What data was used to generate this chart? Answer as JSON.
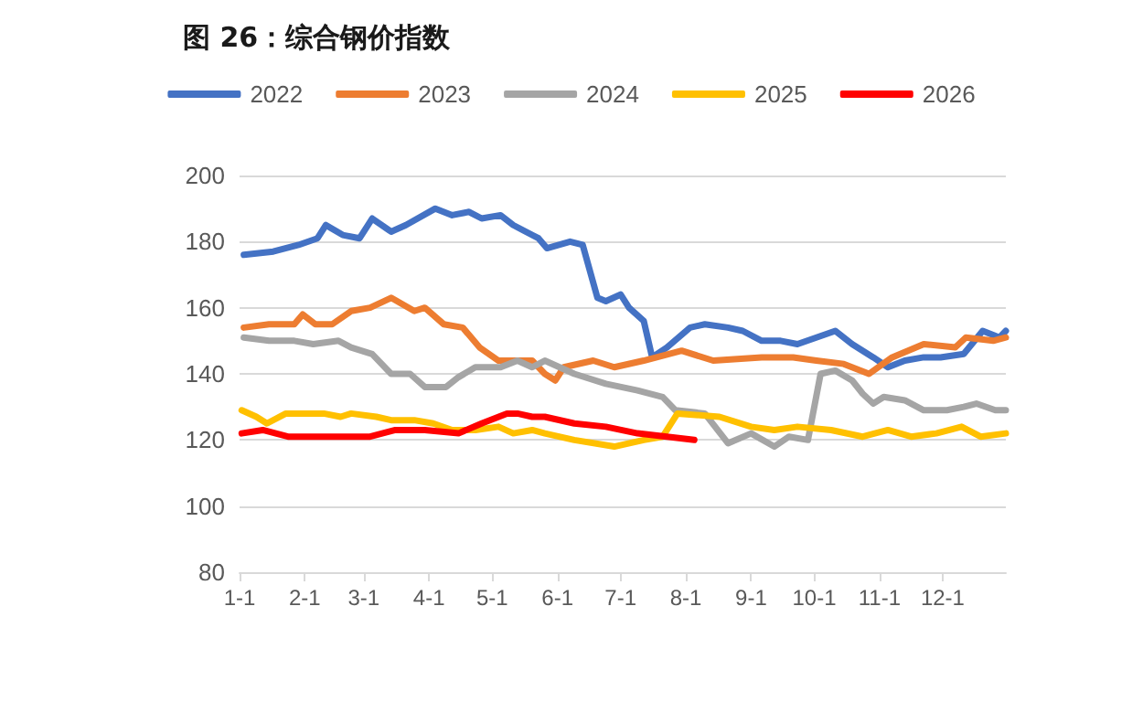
{
  "chart_data": {
    "type": "line",
    "title": "图 26：综合钢价指数",
    "xlim": [
      "--01-01",
      "--12-31"
    ],
    "xticks": [
      {
        "value": "--01-01",
        "label": "1-1"
      },
      {
        "value": "--02-01",
        "label": "2-1"
      },
      {
        "value": "--03-01",
        "label": "3-1"
      },
      {
        "value": "--04-01",
        "label": "4-1"
      },
      {
        "value": "--05-01",
        "label": "5-1"
      },
      {
        "value": "--06-01",
        "label": "6-1"
      },
      {
        "value": "--07-01",
        "label": "7-1"
      },
      {
        "value": "--08-01",
        "label": "8-1"
      },
      {
        "value": "--09-01",
        "label": "9-1"
      },
      {
        "value": "--10-01",
        "label": "10-1"
      },
      {
        "value": "--11-01",
        "label": "11-1"
      },
      {
        "value": "--12-01",
        "label": "12-1"
      }
    ],
    "ylim": [
      80,
      200
    ],
    "yticks": [
      80,
      100,
      120,
      140,
      160,
      180,
      200
    ],
    "grid": "y",
    "legend": "top",
    "marker": "none",
    "line_style": "solid",
    "series": [
      {
        "name": "2022",
        "color": "#4472c4",
        "x": [
          "--01-03",
          "--01-17",
          "--01-29",
          "--02-07",
          "--02-11",
          "--02-19",
          "--02-27",
          "--03-05",
          "--03-14",
          "--03-21",
          "--04-04",
          "--04-12",
          "--04-20",
          "--04-26",
          "--05-05",
          "--05-11",
          "--05-23",
          "--05-27",
          "--06-07",
          "--06-13",
          "--06-20",
          "--06-24",
          "--07-01",
          "--07-05",
          "--07-12",
          "--07-16",
          "--07-23",
          "--08-03",
          "--08-10",
          "--08-21",
          "--08-28",
          "--09-06",
          "--09-15",
          "--09-23",
          "--10-02",
          "--10-11",
          "--10-19",
          "--10-29",
          "--11-05",
          "--11-13",
          "--11-22",
          "--11-30",
          "--12-11",
          "--12-20",
          "--12-28",
          "--12-31"
        ],
        "values": [
          176,
          177,
          179,
          181,
          185,
          182,
          181,
          187,
          183,
          185,
          190,
          188,
          189,
          187,
          188,
          185,
          181,
          178,
          180,
          179,
          163,
          162,
          164,
          160,
          156,
          145,
          148,
          154,
          155,
          154,
          153,
          150,
          150,
          149,
          151,
          153,
          149,
          145,
          142,
          144,
          145,
          145,
          146,
          153,
          151,
          153
        ]
      },
      {
        "name": "2023",
        "color": "#ed7d31",
        "x": [
          "--01-03",
          "--01-15",
          "--01-27",
          "--01-31",
          "--02-06",
          "--02-14",
          "--02-23",
          "--03-04",
          "--03-14",
          "--03-25",
          "--03-30",
          "--04-08",
          "--04-17",
          "--04-25",
          "--05-04",
          "--05-11",
          "--05-20",
          "--05-26",
          "--05-31",
          "--06-04",
          "--06-18",
          "--06-28",
          "--07-12",
          "--07-30",
          "--08-14",
          "--09-06",
          "--09-21",
          "--10-02",
          "--10-15",
          "--10-27",
          "--11-07",
          "--11-22",
          "--12-07",
          "--12-12",
          "--12-25",
          "--12-31"
        ],
        "values": [
          154,
          155,
          155,
          158,
          155,
          155,
          159,
          160,
          163,
          159,
          160,
          155,
          154,
          148,
          144,
          144,
          144,
          140,
          138,
          142,
          144,
          142,
          144,
          147,
          144,
          145,
          145,
          144,
          143,
          140,
          145,
          149,
          148,
          151,
          150,
          151
        ]
      },
      {
        "name": "2024",
        "color": "#a5a5a5",
        "x": [
          "--01-03",
          "--01-15",
          "--01-27",
          "--02-05",
          "--02-17",
          "--02-23",
          "--03-05",
          "--03-14",
          "--03-23",
          "--03-30",
          "--04-09",
          "--04-15",
          "--04-23",
          "--05-05",
          "--05-13",
          "--05-20",
          "--05-26",
          "--06-09",
          "--06-24",
          "--07-09",
          "--07-21",
          "--07-27",
          "--08-10",
          "--08-21",
          "--09-01",
          "--09-12",
          "--09-19",
          "--09-28",
          "--10-04",
          "--10-11",
          "--10-19",
          "--10-24",
          "--10-29",
          "--11-03",
          "--11-13",
          "--11-22",
          "--12-03",
          "--12-11",
          "--12-17",
          "--12-26",
          "--12-31"
        ],
        "values": [
          151,
          150,
          150,
          149,
          150,
          148,
          146,
          140,
          140,
          136,
          136,
          139,
          142,
          142,
          144,
          142,
          144,
          140,
          137,
          135,
          133,
          129,
          128,
          119,
          122,
          118,
          121,
          120,
          140,
          141,
          138,
          134,
          131,
          133,
          132,
          129,
          129,
          130,
          131,
          129,
          129
        ]
      },
      {
        "name": "2025",
        "color": "#ffc000",
        "x": [
          "--01-02",
          "--01-09",
          "--01-14",
          "--01-23",
          "--02-10",
          "--02-18",
          "--02-23",
          "--03-07",
          "--03-14",
          "--03-25",
          "--04-03",
          "--04-12",
          "--04-23",
          "--05-04",
          "--05-11",
          "--05-20",
          "--05-26",
          "--06-09",
          "--06-28",
          "--07-12",
          "--07-21",
          "--07-28",
          "--08-17",
          "--09-01",
          "--09-12",
          "--09-23",
          "--10-09",
          "--10-24",
          "--11-05",
          "--11-16",
          "--11-28",
          "--12-10",
          "--12-19",
          "--12-31"
        ],
        "values": [
          129,
          127,
          125,
          128,
          128,
          127,
          128,
          127,
          126,
          126,
          125,
          123,
          123,
          124,
          122,
          123,
          122,
          120,
          118,
          120,
          121,
          128,
          127,
          124,
          123,
          124,
          123,
          121,
          123,
          121,
          122,
          124,
          121,
          122
        ]
      },
      {
        "name": "2026",
        "color": "#ff0000",
        "x": [
          "--01-02",
          "--01-12",
          "--01-24",
          "--02-10",
          "--03-04",
          "--03-16",
          "--03-30",
          "--04-15",
          "--04-26",
          "--05-08",
          "--05-13",
          "--05-20",
          "--05-26",
          "--06-09",
          "--06-24",
          "--07-09",
          "--07-23",
          "--08-05"
        ],
        "values": [
          122,
          123,
          121,
          121,
          121,
          123,
          123,
          122,
          125,
          128,
          128,
          127,
          127,
          125,
          124,
          122,
          121,
          120
        ]
      }
    ]
  }
}
